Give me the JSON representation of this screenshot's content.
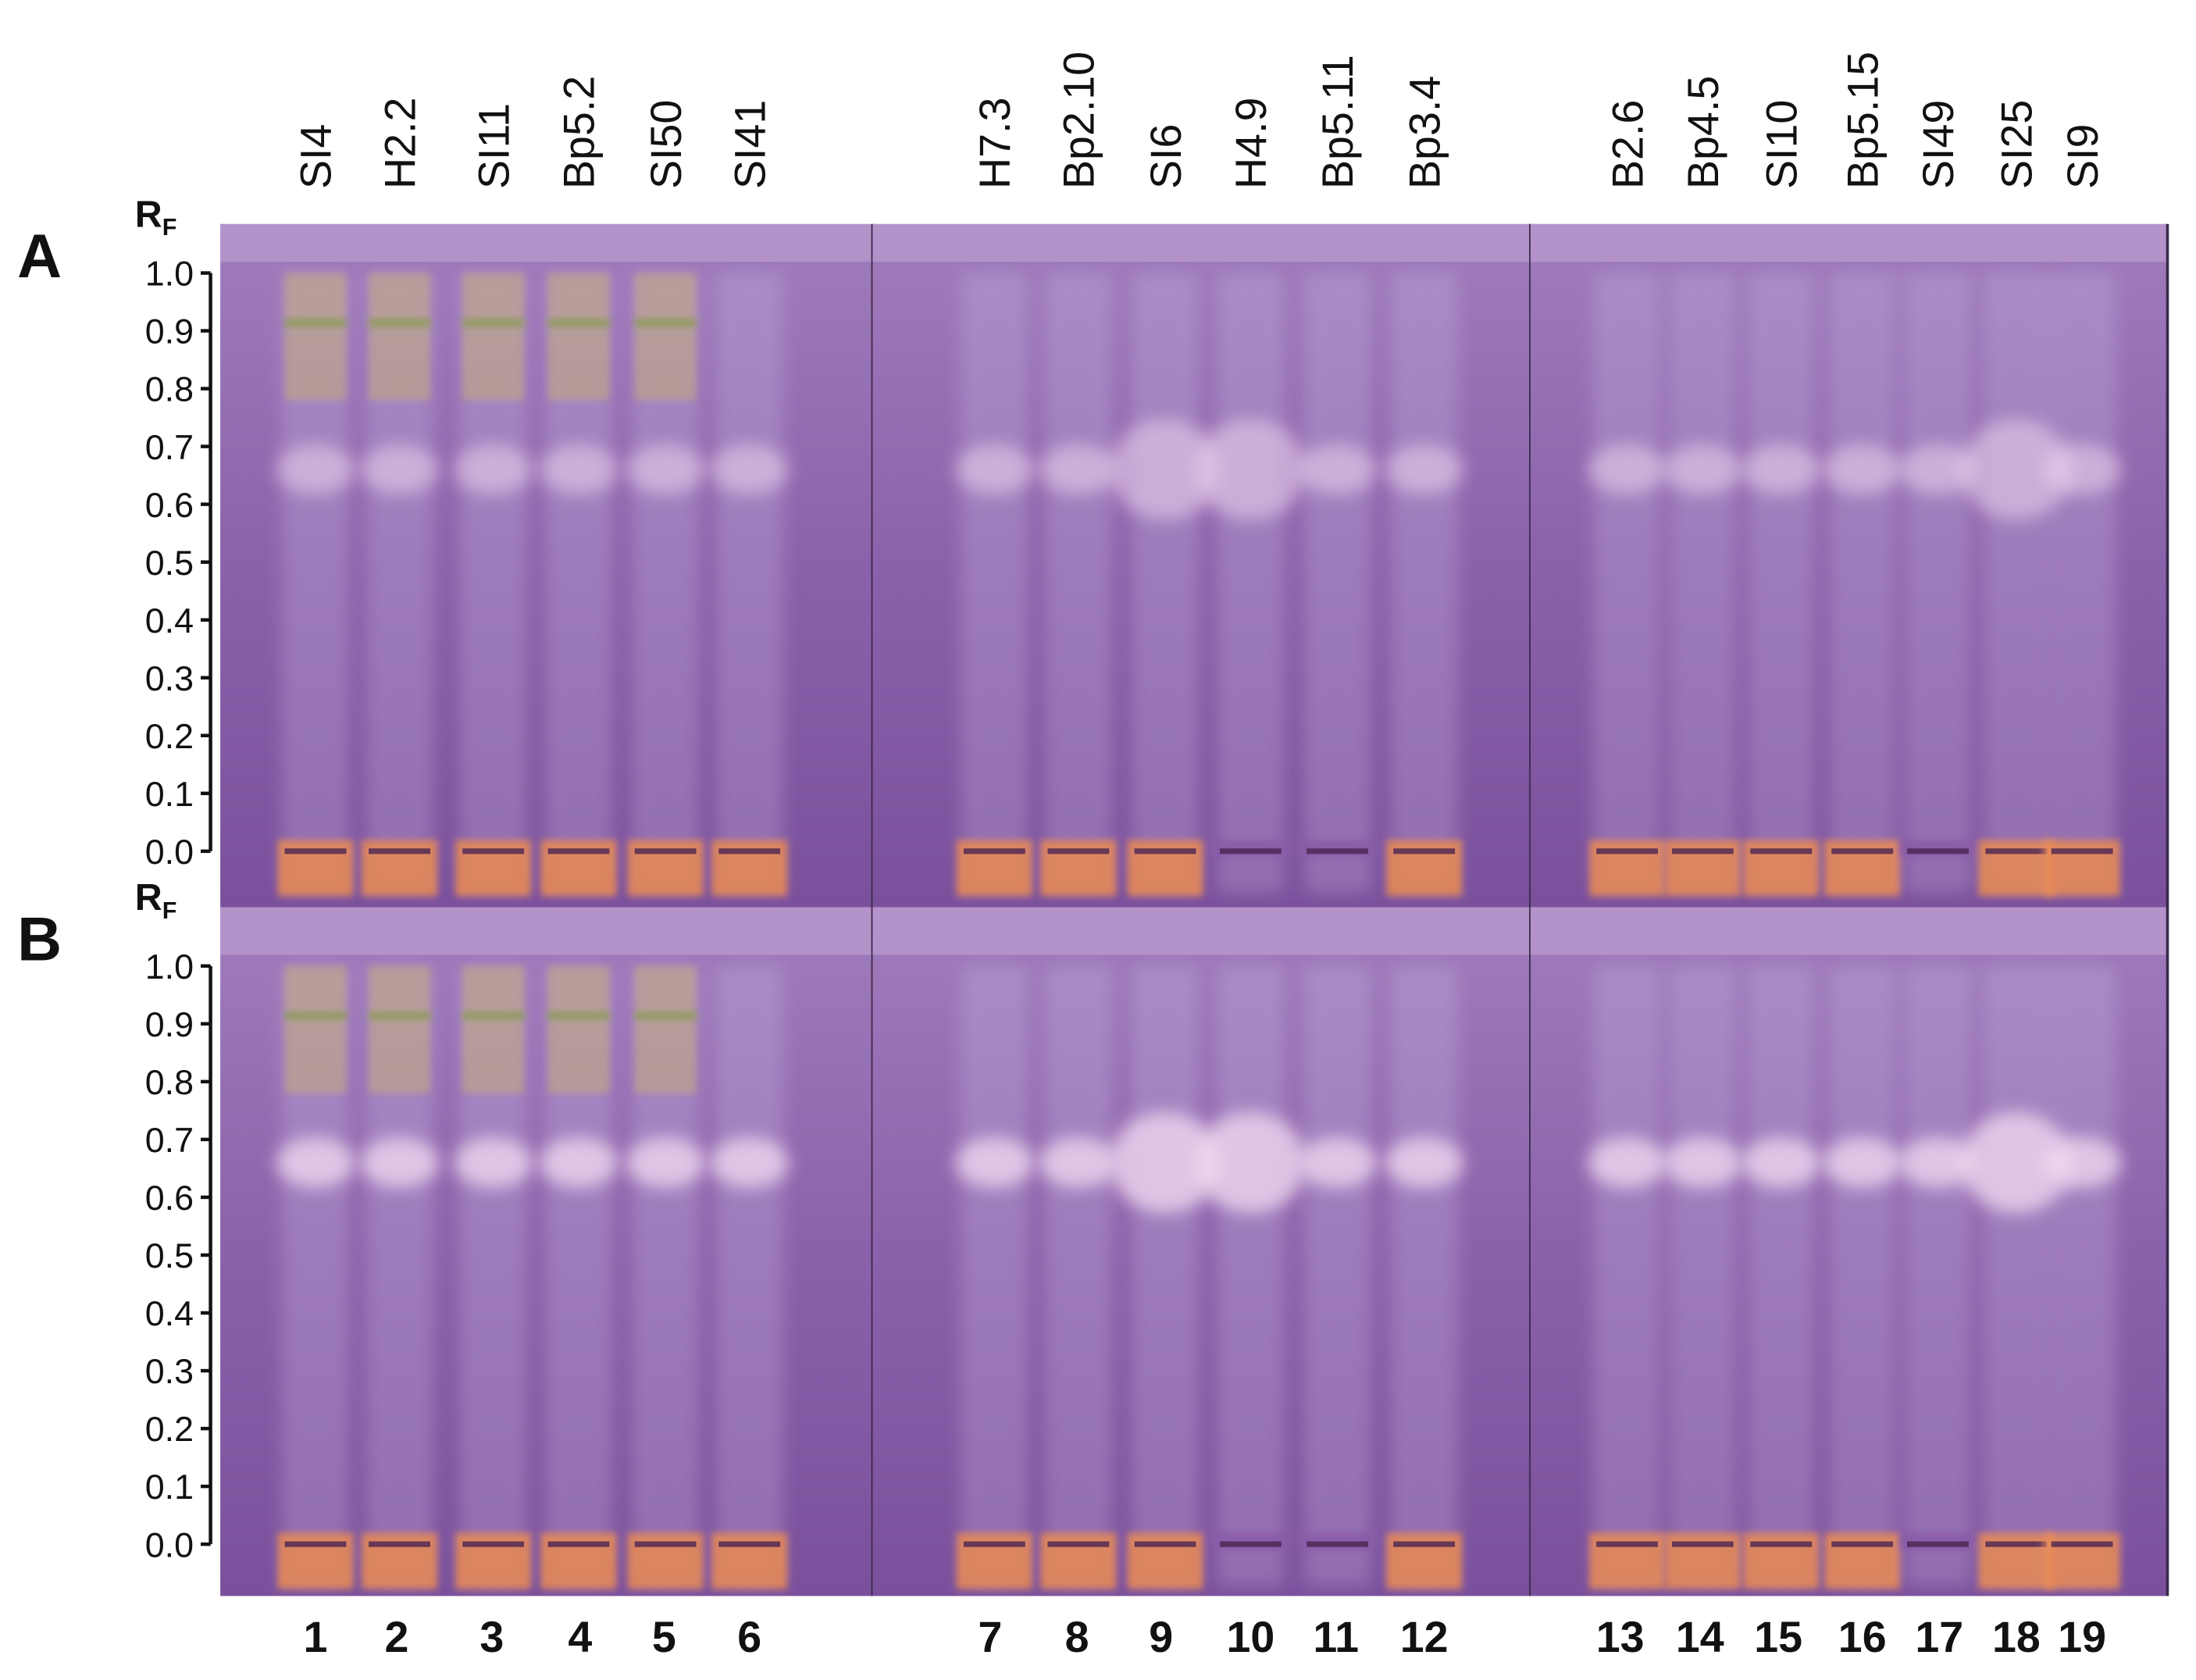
{
  "lane_labels": [
    "SI4",
    "H2.2",
    "SI11",
    "Bp5.2",
    "SI50",
    "SI41",
    "H7.3",
    "Bp2.10",
    "SI6",
    "H4.9",
    "Bp5.11",
    "Bp3.4",
    "B2.6",
    "Bp4.5",
    "SI10",
    "Bp5.15",
    "SI49",
    "SI25",
    "SI9"
  ],
  "lane_numbers": [
    "1",
    "2",
    "3",
    "4",
    "5",
    "6",
    "7",
    "8",
    "9",
    "10",
    "11",
    "12",
    "13",
    "14",
    "15",
    "16",
    "17",
    "18",
    "19"
  ],
  "panels": [
    {
      "label": "A",
      "axis_label": "R",
      "axis_label_sub": "F",
      "ticks": [
        "1.0",
        "0.9",
        "0.8",
        "0.7",
        "0.6",
        "0.5",
        "0.4",
        "0.3",
        "0.2",
        "0.1",
        "0.0"
      ]
    },
    {
      "label": "B",
      "axis_label": "R",
      "axis_label_sub": "F",
      "ticks": [
        "1.0",
        "0.9",
        "0.8",
        "0.7",
        "0.6",
        "0.5",
        "0.4",
        "0.3",
        "0.2",
        "0.1",
        "0.0"
      ]
    }
  ]
}
